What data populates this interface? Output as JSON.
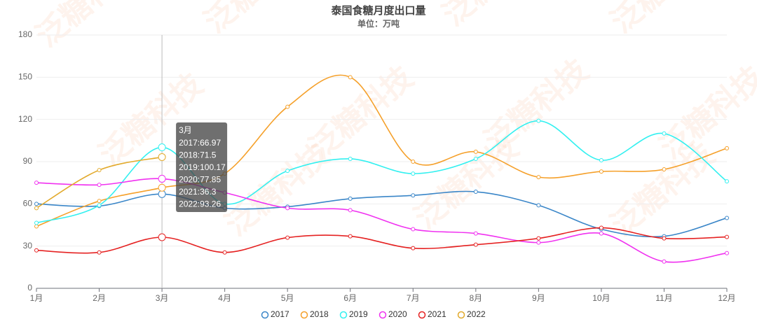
{
  "chart_data": {
    "type": "line",
    "title": "泰国食糖月度出口量",
    "subtitle": "单位：万吨",
    "watermark": "泛糖科技",
    "categories": [
      "1月",
      "2月",
      "3月",
      "4月",
      "5月",
      "6月",
      "7月",
      "8月",
      "9月",
      "10月",
      "11月",
      "12月"
    ],
    "ylim": [
      0,
      180
    ],
    "yticks": [
      0,
      30,
      60,
      90,
      120,
      150,
      180
    ],
    "grid": true,
    "legend": "bottom",
    "smooth": true,
    "series": [
      {
        "name": "2017",
        "color": "#3a86c8",
        "values": [
          60,
          58.5,
          66.97,
          57,
          58,
          63.7,
          66,
          68.6,
          59,
          42,
          37,
          50
        ]
      },
      {
        "name": "2018",
        "color": "#f5a02a",
        "values": [
          44,
          62,
          71.5,
          81.5,
          129,
          150,
          90,
          97,
          79,
          83,
          84.5,
          99.5
        ]
      },
      {
        "name": "2019",
        "color": "#33f0f0",
        "values": [
          46.5,
          59,
          100.17,
          60,
          83.5,
          92,
          81.5,
          92,
          119,
          91,
          110,
          76
        ]
      },
      {
        "name": "2020",
        "color": "#f032f0",
        "values": [
          75,
          73.5,
          77.85,
          68,
          57,
          55.5,
          42,
          39,
          32.5,
          39,
          19,
          25
        ]
      },
      {
        "name": "2021",
        "color": "#e52222",
        "values": [
          27,
          25.5,
          36.3,
          25.5,
          36,
          37,
          28.5,
          31,
          35.5,
          43,
          35.5,
          36.5
        ]
      },
      {
        "name": "2022",
        "color": "#e2aa2c",
        "values": [
          57,
          84,
          93.26,
          null,
          null,
          null,
          null,
          null,
          null,
          null,
          null,
          null
        ]
      }
    ],
    "tooltip": {
      "title": "3月",
      "lines": [
        "2017:66.97",
        "2018:71.5",
        "2019:100.17",
        "2020:77.85",
        "2021:36.3",
        "2022:93.26"
      ]
    }
  }
}
